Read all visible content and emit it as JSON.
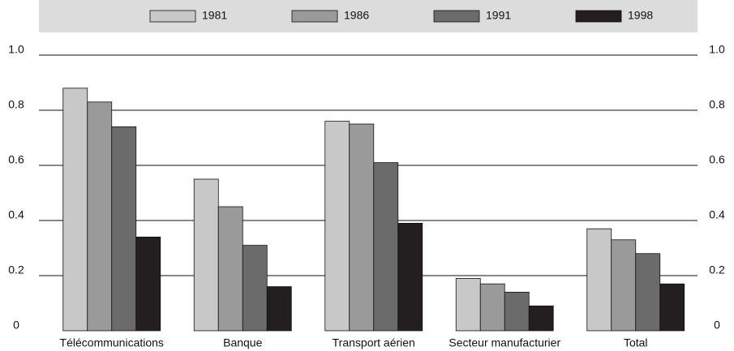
{
  "chart_data": {
    "type": "bar",
    "categories": [
      "Télécommunications",
      "Banque",
      "Transport aérien",
      "Secteur manufacturier",
      "Total"
    ],
    "series": [
      {
        "name": "1981",
        "color": "#c8c8c8",
        "values": [
          0.88,
          0.55,
          0.76,
          0.19,
          0.37
        ]
      },
      {
        "name": "1986",
        "color": "#9a9a9a",
        "values": [
          0.83,
          0.45,
          0.75,
          0.17,
          0.33
        ]
      },
      {
        "name": "1991",
        "color": "#6b6b6b",
        "values": [
          0.74,
          0.31,
          0.61,
          0.14,
          0.28
        ]
      },
      {
        "name": "1998",
        "color": "#231f20",
        "values": [
          0.34,
          0.16,
          0.39,
          0.09,
          0.17
        ]
      }
    ],
    "ylim": [
      0,
      1.0
    ],
    "yticks": [
      0,
      0.2,
      0.4,
      0.6,
      0.8,
      {
        "value": 1.0,
        "label": "1.0"
      }
    ],
    "grid": true,
    "legend": "top"
  }
}
